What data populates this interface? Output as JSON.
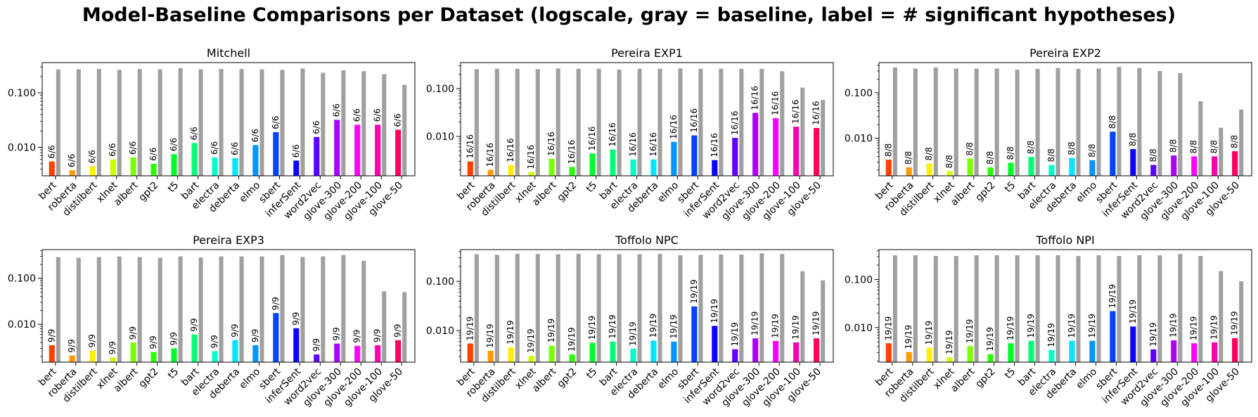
{
  "suptitle": "Model-Baseline Comparisons per Dataset (logscale, gray = baseline, label = # significant hypotheses)",
  "colors": {
    "baseline": "#a0a0a0",
    "models": [
      "#ff4000",
      "#ff9900",
      "#ffee00",
      "#ccff00",
      "#7bff00",
      "#2bff00",
      "#00ff26",
      "#00ff77",
      "#00ffc8",
      "#00e5ff",
      "#0095ff",
      "#0044ff",
      "#0d00ff",
      "#5d00ff",
      "#ae00ff",
      "#ff00ff",
      "#ff00ae",
      "#ff005e"
    ]
  },
  "chart_data": [
    {
      "type": "bar",
      "title": "Mitchell",
      "yscale": "log",
      "ylim": [
        0.003,
        0.36
      ],
      "yticks": [
        "0.010",
        "0.100"
      ],
      "categories": [
        "bert",
        "roberta",
        "distilbert",
        "xlnet",
        "albert",
        "gpt2",
        "t5",
        "bart",
        "electra",
        "deberta",
        "elmo",
        "sbert",
        "inferSent",
        "word2vec",
        "glove-300",
        "glove-200",
        "glove-100",
        "glove-50"
      ],
      "series": [
        {
          "role": "model",
          "values": [
            0.0055,
            0.0038,
            0.0045,
            0.006,
            0.0065,
            0.005,
            0.0075,
            0.012,
            0.0065,
            0.0063,
            0.011,
            0.019,
            0.0057,
            0.0155,
            0.032,
            0.026,
            0.026,
            0.021
          ]
        },
        {
          "role": "baseline",
          "values": [
            0.27,
            0.27,
            0.275,
            0.265,
            0.275,
            0.27,
            0.285,
            0.27,
            0.275,
            0.275,
            0.27,
            0.265,
            0.28,
            0.235,
            0.26,
            0.25,
            0.22,
            0.14
          ]
        }
      ],
      "labels": [
        "6/6",
        "6/6",
        "6/6",
        "6/6",
        "6/6",
        "6/6",
        "6/6",
        "6/6",
        "6/6",
        "6/6",
        "6/6",
        "6/6",
        "6/6",
        "6/6",
        "6/6",
        "6/6",
        "6/6",
        "6/6"
      ]
    },
    {
      "type": "bar",
      "title": "Pereira EXP1",
      "yscale": "log",
      "ylim": [
        0.0015,
        0.35
      ],
      "yticks": [
        "0.010",
        "0.100"
      ],
      "categories": [
        "bert",
        "roberta",
        "distilbert",
        "xlnet",
        "albert",
        "gpt2",
        "t5",
        "bart",
        "electra",
        "deberta",
        "elmo",
        "sbert",
        "inferSent",
        "word2vec",
        "glove-300",
        "glove-200",
        "glove-100",
        "glove-50"
      ],
      "series": [
        {
          "role": "model",
          "values": [
            0.003,
            0.002,
            0.0025,
            0.0018,
            0.0034,
            0.0023,
            0.0044,
            0.0053,
            0.0033,
            0.0033,
            0.0077,
            0.0105,
            0.0032,
            0.0093,
            0.031,
            0.024,
            0.016,
            0.015
          ]
        },
        {
          "role": "baseline",
          "values": [
            0.255,
            0.26,
            0.26,
            0.255,
            0.265,
            0.26,
            0.26,
            0.25,
            0.26,
            0.26,
            0.265,
            0.26,
            0.26,
            0.26,
            0.26,
            0.23,
            0.105,
            0.058
          ]
        }
      ],
      "labels": [
        "16/16",
        "16/16",
        "16/16",
        "16/16",
        "16/16",
        "16/16",
        "16/16",
        "16/16",
        "16/16",
        "16/16",
        "16/16",
        "16/16",
        "16/16",
        "16/16",
        "16/16",
        "16/16",
        "16/16",
        "16/16"
      ]
    },
    {
      "type": "bar",
      "title": "Pereira EXP2",
      "yscale": "log",
      "ylim": [
        0.0015,
        0.46
      ],
      "yticks": [
        "0.010",
        "0.100"
      ],
      "categories": [
        "bert",
        "roberta",
        "distilbert",
        "xlnet",
        "albert",
        "gpt2",
        "t5",
        "bart",
        "electra",
        "deberta",
        "elmo",
        "sbert",
        "inferSent",
        "word2vec",
        "glove-300",
        "glove-200",
        "glove-100",
        "glove-50"
      ],
      "series": [
        {
          "role": "model",
          "values": [
            0.0034,
            0.0023,
            0.0028,
            0.0019,
            0.0036,
            0.0023,
            0.0029,
            0.0039,
            0.0026,
            0.0037,
            0.0033,
            0.014,
            0.0058,
            0.0026,
            0.0042,
            0.004,
            0.004,
            0.0052
          ]
        },
        {
          "role": "baseline",
          "values": [
            0.36,
            0.34,
            0.36,
            0.34,
            0.34,
            0.34,
            0.32,
            0.335,
            0.35,
            0.335,
            0.34,
            0.37,
            0.35,
            0.3,
            0.27,
            0.065,
            0.017,
            0.043
          ]
        }
      ],
      "labels": [
        "8/8",
        "8/8",
        "8/8",
        "8/8",
        "8/8",
        "8/8",
        "8/8",
        "8/8",
        "8/8",
        "8/8",
        "8/8",
        "8/8",
        "8/8",
        "8/8",
        "8/8",
        "8/8",
        "8/8",
        "8/8"
      ]
    },
    {
      "type": "bar",
      "title": "Pereira EXP3",
      "yscale": "log",
      "ylim": [
        0.0015,
        0.42
      ],
      "yticks": [
        "0.010",
        "0.100"
      ],
      "categories": [
        "bert",
        "roberta",
        "distilbert",
        "xlnet",
        "albert",
        "gpt2",
        "t5",
        "bart",
        "electra",
        "deberta",
        "elmo",
        "sbert",
        "inferSent",
        "word2vec",
        "glove-300",
        "glove-200",
        "glove-100",
        "glove-50"
      ],
      "series": [
        {
          "role": "model",
          "values": [
            0.0035,
            0.0021,
            0.0027,
            0.0019,
            0.004,
            0.0025,
            0.003,
            0.006,
            0.0026,
            0.0045,
            0.0035,
            0.0175,
            0.0082,
            0.0022,
            0.0038,
            0.0034,
            0.0035,
            0.0045
          ]
        },
        {
          "role": "baseline",
          "values": [
            0.29,
            0.28,
            0.29,
            0.3,
            0.29,
            0.28,
            0.3,
            0.285,
            0.3,
            0.3,
            0.3,
            0.32,
            0.29,
            0.3,
            0.32,
            0.24,
            0.052,
            0.05
          ]
        }
      ],
      "labels": [
        "9/9",
        "9/9",
        "9/9",
        "9/9",
        "9/9",
        "9/9",
        "9/9",
        "9/9",
        "9/9",
        "9/9",
        "9/9",
        "9/9",
        "9/9",
        "9/9",
        "9/9",
        "9/9",
        "9/9",
        "9/9"
      ]
    },
    {
      "type": "bar",
      "title": "Toffolo NPC",
      "yscale": "log",
      "ylim": [
        0.0023,
        0.44
      ],
      "yticks": [
        "0.010",
        "0.100"
      ],
      "categories": [
        "bert",
        "roberta",
        "distilbert",
        "xlnet",
        "albert",
        "gpt2",
        "t5",
        "bart",
        "electra",
        "deberta",
        "elmo",
        "sbert",
        "inferSent",
        "word2vec",
        "glove-300",
        "glove-200",
        "glove-100",
        "glove-50"
      ],
      "series": [
        {
          "role": "model",
          "values": [
            0.0055,
            0.0039,
            0.0046,
            0.0031,
            0.005,
            0.0033,
            0.0057,
            0.006,
            0.0043,
            0.0063,
            0.006,
            0.031,
            0.0125,
            0.0042,
            0.007,
            0.0062,
            0.0058,
            0.007
          ]
        },
        {
          "role": "baseline",
          "values": [
            0.355,
            0.345,
            0.36,
            0.36,
            0.355,
            0.36,
            0.355,
            0.355,
            0.355,
            0.36,
            0.34,
            0.345,
            0.35,
            0.35,
            0.37,
            0.36,
            0.16,
            0.105
          ]
        }
      ],
      "labels": [
        "19/19",
        "19/19",
        "19/19",
        "19/19",
        "19/19",
        "19/19",
        "19/19",
        "19/19",
        "19/19",
        "19/19",
        "19/19",
        "19/19",
        "19/19",
        "19/19",
        "19/19",
        "19/19",
        "19/19",
        "19/19"
      ]
    },
    {
      "type": "bar",
      "title": "Toffolo NPI",
      "yscale": "log",
      "ylim": [
        0.0019,
        0.42
      ],
      "yticks": [
        "0.010",
        "0.100"
      ],
      "categories": [
        "bert",
        "roberta",
        "distilbert",
        "xlnet",
        "albert",
        "gpt2",
        "t5",
        "bart",
        "electra",
        "deberta",
        "elmo",
        "sbert",
        "inferSent",
        "word2vec",
        "glove-300",
        "glove-200",
        "glove-100",
        "glove-50"
      ],
      "series": [
        {
          "role": "model",
          "values": [
            0.0047,
            0.0031,
            0.0038,
            0.0024,
            0.0041,
            0.0028,
            0.0047,
            0.0053,
            0.0034,
            0.0053,
            0.0053,
            0.022,
            0.0105,
            0.0035,
            0.0054,
            0.0047,
            0.0049,
            0.006
          ]
        },
        {
          "role": "baseline",
          "values": [
            0.32,
            0.32,
            0.31,
            0.31,
            0.32,
            0.32,
            0.32,
            0.32,
            0.32,
            0.31,
            0.32,
            0.31,
            0.32,
            0.32,
            0.34,
            0.31,
            0.15,
            0.092
          ]
        }
      ],
      "labels": [
        "19/19",
        "19/19",
        "19/19",
        "19/19",
        "19/19",
        "19/19",
        "19/19",
        "19/19",
        "19/19",
        "19/19",
        "19/19",
        "19/19",
        "19/19",
        "19/19",
        "19/19",
        "19/19",
        "19/19",
        "19/19"
      ]
    }
  ]
}
